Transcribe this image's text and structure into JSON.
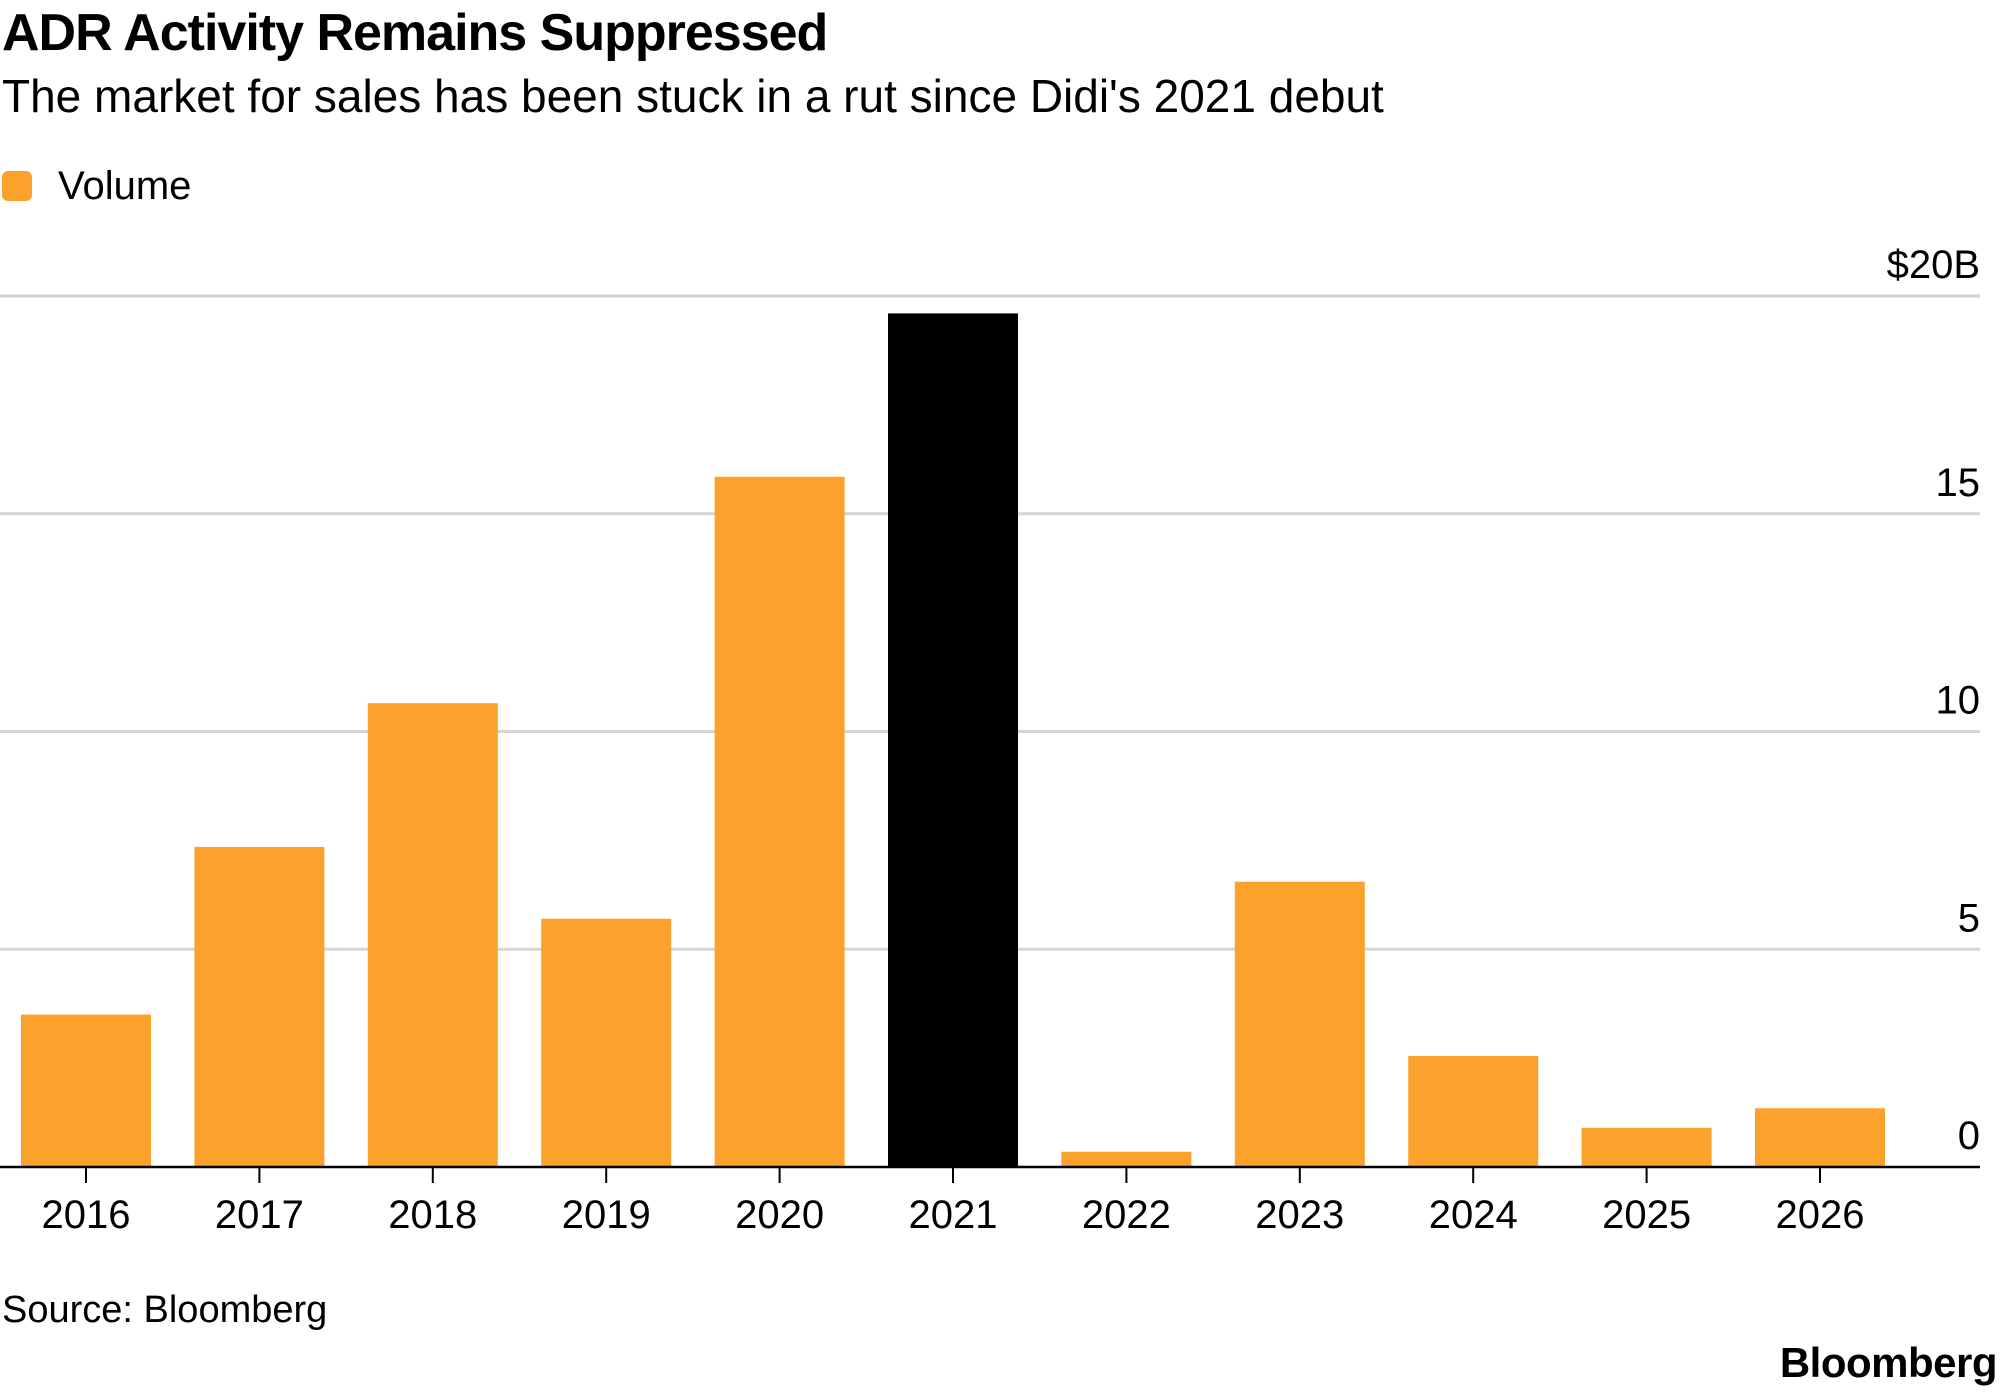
{
  "header": {
    "title": "ADR Activity Remains Suppressed",
    "subtitle": "The market for sales has been stuck in a rut since Didi's 2021 debut"
  },
  "legend": {
    "label": "Volume",
    "color": "#FCA12C"
  },
  "footer": {
    "source": "Source: Bloomberg",
    "brand": "Bloomberg"
  },
  "chart_data": {
    "type": "bar",
    "title": "ADR Activity Remains Suppressed",
    "subtitle": "The market for sales has been stuck in a rut since Didi's 2021 debut",
    "categories": [
      "2016",
      "2017",
      "2018",
      "2019",
      "2020",
      "2021",
      "2022",
      "2023",
      "2024",
      "2025",
      "2026"
    ],
    "series": [
      {
        "name": "Volume",
        "values": [
          3.5,
          7.35,
          10.65,
          5.7,
          15.85,
          19.6,
          0.35,
          6.55,
          2.55,
          0.9,
          1.35
        ]
      }
    ],
    "highlight_category": "2021",
    "colors": {
      "bar": "#FCA12C",
      "highlight": "#000000",
      "grid": "#D5D5D5",
      "axis": "#000000"
    },
    "ylim": [
      0,
      20
    ],
    "yticks": [
      0,
      5,
      10,
      15,
      20
    ],
    "ytick_labels": [
      "0",
      "5",
      "10",
      "15",
      "$20B"
    ],
    "y_axis_side": "right",
    "grid": true,
    "legend_position": "top-left"
  }
}
